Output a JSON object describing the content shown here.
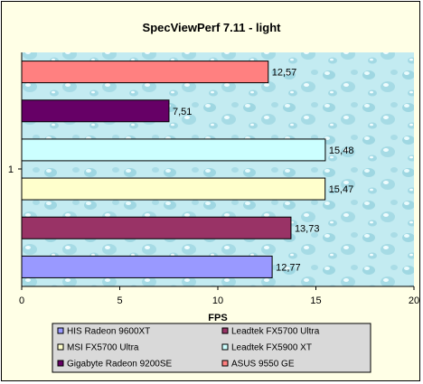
{
  "chart_data": {
    "type": "bar",
    "orientation": "horizontal",
    "title": "SpecViewPerf 7.11 - light",
    "xlabel": "FPS",
    "ylabel": "",
    "category_label": "1",
    "xlim": [
      0,
      20
    ],
    "x_ticks": [
      "0",
      "5",
      "10",
      "15",
      "20"
    ],
    "grid": false,
    "legend_position": "bottom",
    "series": [
      {
        "name": "HIS Radeon 9600XT",
        "value": 12.77,
        "label": "12,77",
        "color": "#9999ff"
      },
      {
        "name": "Leadtek FX5700 Ultra",
        "value": 13.73,
        "label": "13,73",
        "color": "#993366"
      },
      {
        "name": "MSI FX5700 Ultra",
        "value": 15.47,
        "label": "15,47",
        "color": "#ffffcc"
      },
      {
        "name": "Leadtek FX5900 XT",
        "value": 15.48,
        "label": "15,48",
        "color": "#ccffff"
      },
      {
        "name": "Gigabyte Radeon 9200SE",
        "value": 7.51,
        "label": "7,51",
        "color": "#660066"
      },
      {
        "name": "ASUS 9550 GE",
        "value": 12.57,
        "label": "12,57",
        "color": "#ff8080"
      }
    ]
  },
  "colors": {
    "frame_background": "#ffffe6",
    "plot_background": "#bfe8ef",
    "legend_background": "#d9d9d9"
  }
}
